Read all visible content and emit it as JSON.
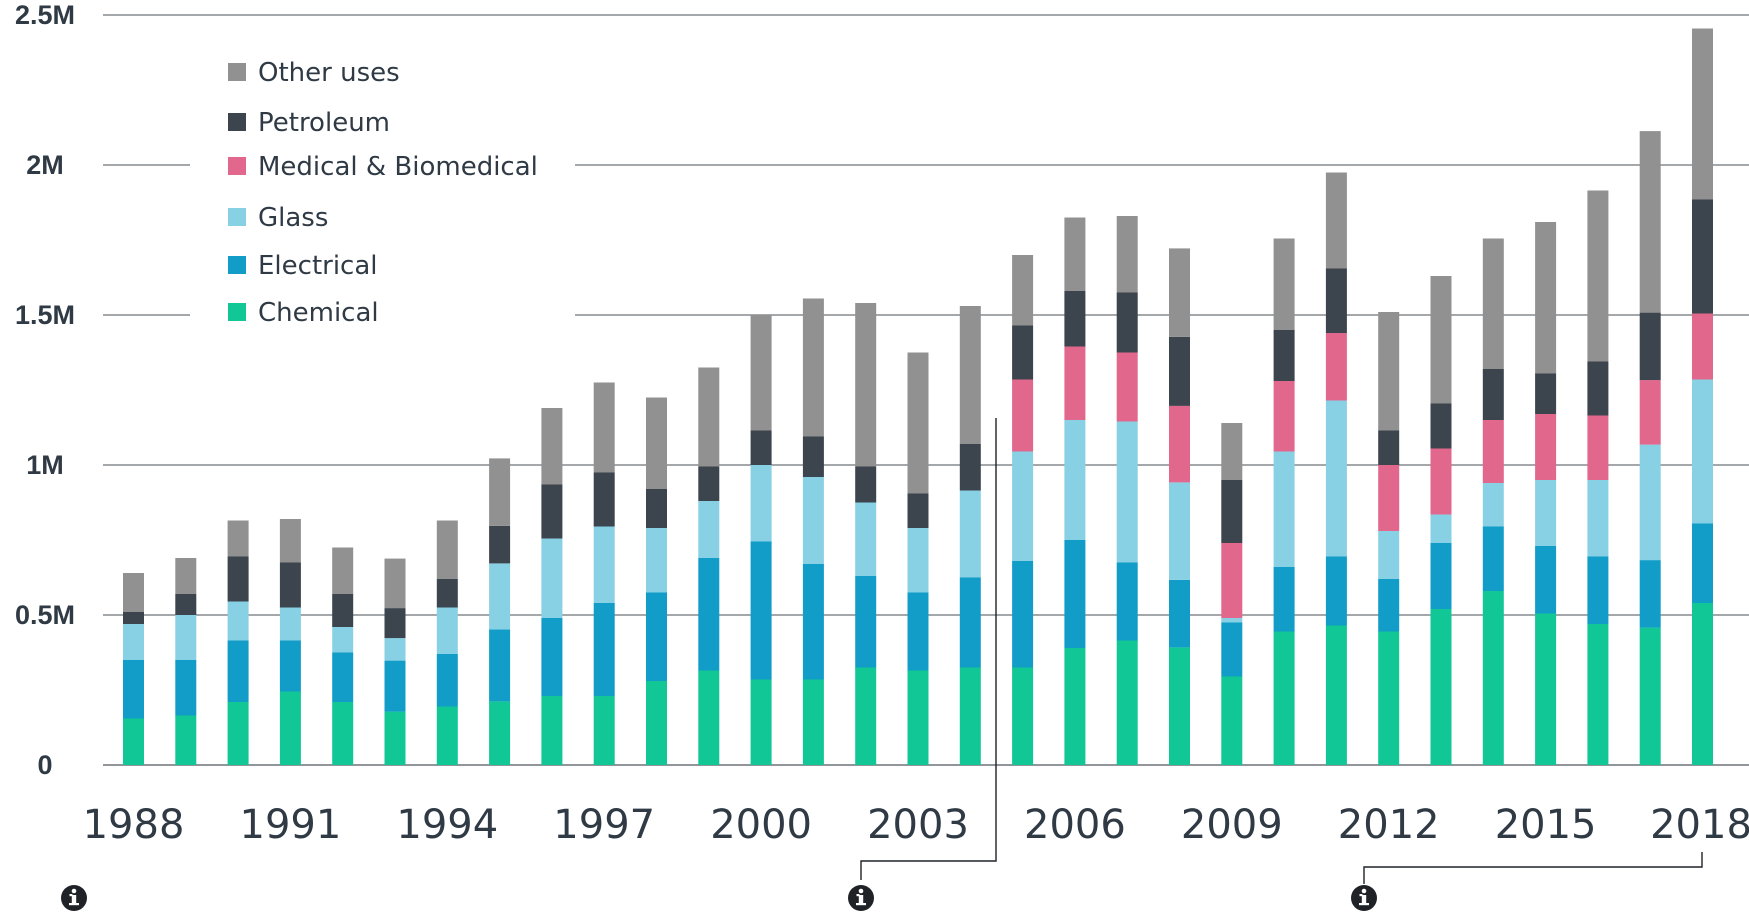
{
  "chart_data": {
    "type": "bar",
    "stacked": true,
    "title": "",
    "xlabel": "",
    "ylabel": "",
    "ylim": [
      0,
      2500000
    ],
    "yticks": [
      {
        "value": 0,
        "label": "0"
      },
      {
        "value": 500000,
        "label": "0.5M"
      },
      {
        "value": 1000000,
        "label": "1M"
      },
      {
        "value": 1500000,
        "label": "1.5M"
      },
      {
        "value": 2000000,
        "label": "2M"
      },
      {
        "value": 2500000,
        "label": "2.5M"
      }
    ],
    "xtick_labels": [
      "1988",
      "1991",
      "1994",
      "1997",
      "2000",
      "2003",
      "2006",
      "2009",
      "2012",
      "2015",
      "2018"
    ],
    "grid": true,
    "legend_position": "top-left",
    "categories": [
      "1988",
      "1989",
      "1990",
      "1991",
      "1992",
      "1993",
      "1994",
      "1995",
      "1996",
      "1997",
      "1998",
      "1999",
      "2000",
      "2001",
      "2002",
      "2003",
      "2004",
      "2005",
      "2006",
      "2007",
      "2008",
      "2009",
      "2010",
      "2011",
      "2012",
      "2013",
      "2014",
      "2015",
      "2016",
      "2017",
      "2018"
    ],
    "series": [
      {
        "name": "Chemical",
        "color": "#11c795",
        "values": [
          155000,
          165000,
          210000,
          245000,
          210000,
          178000,
          195000,
          212000,
          230000,
          230000,
          280000,
          315000,
          285000,
          285000,
          325000,
          315000,
          325000,
          325000,
          390000,
          415000,
          392000,
          295000,
          445000,
          465000,
          445000,
          520000,
          580000,
          505000,
          470000,
          458000,
          540000
        ]
      },
      {
        "name": "Electrical",
        "color": "#119dc8",
        "values": [
          195000,
          185000,
          205000,
          170000,
          165000,
          170000,
          175000,
          240000,
          260000,
          310000,
          295000,
          375000,
          460000,
          385000,
          305000,
          260000,
          300000,
          355000,
          360000,
          260000,
          225000,
          180000,
          215000,
          230000,
          175000,
          220000,
          215000,
          225000,
          225000,
          225000,
          265000
        ]
      },
      {
        "name": "Glass",
        "color": "#88d0e3",
        "values": [
          120000,
          150000,
          130000,
          110000,
          85000,
          75000,
          155000,
          220000,
          265000,
          255000,
          215000,
          190000,
          255000,
          290000,
          245000,
          215000,
          290000,
          365000,
          400000,
          470000,
          325000,
          15000,
          385000,
          520000,
          160000,
          95000,
          145000,
          220000,
          255000,
          385000,
          480000
        ]
      },
      {
        "name": "Medical & Biomedical",
        "color": "#e2678d",
        "values": [
          0,
          0,
          0,
          0,
          0,
          0,
          0,
          0,
          0,
          0,
          0,
          0,
          0,
          0,
          0,
          0,
          0,
          240000,
          245000,
          230000,
          255000,
          250000,
          235000,
          225000,
          220000,
          220000,
          210000,
          220000,
          215000,
          215000,
          220000
        ]
      },
      {
        "name": "Petroleum",
        "color": "#3c444d",
        "values": [
          40000,
          70000,
          150000,
          150000,
          110000,
          100000,
          95000,
          125000,
          180000,
          180000,
          130000,
          115000,
          115000,
          135000,
          120000,
          115000,
          155000,
          180000,
          185000,
          200000,
          230000,
          210000,
          170000,
          215000,
          115000,
          150000,
          170000,
          135000,
          180000,
          225000,
          380000
        ]
      },
      {
        "name": "Other uses",
        "color": "#919191",
        "values": [
          130000,
          120000,
          120000,
          145000,
          155000,
          165000,
          195000,
          225000,
          255000,
          300000,
          305000,
          330000,
          385000,
          460000,
          545000,
          470000,
          460000,
          235000,
          245000,
          255000,
          295000,
          190000,
          305000,
          320000,
          395000,
          425000,
          435000,
          505000,
          570000,
          605000,
          570000
        ]
      }
    ]
  }
}
